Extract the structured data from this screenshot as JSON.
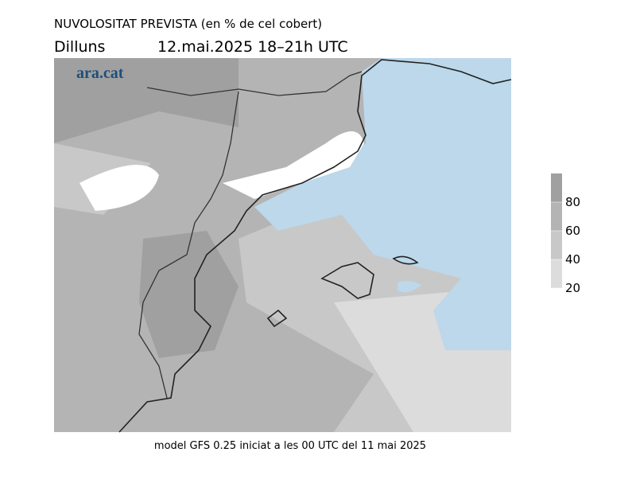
{
  "header": {
    "title": "NUVOLOSITAT PREVISTA (en % de cel cobert)",
    "day": "Dilluns",
    "date": "12.mai.2025 18–21h UTC"
  },
  "logo": "ara.cat",
  "legend": {
    "ticks": [
      80,
      60,
      40,
      20
    ]
  },
  "footer": "model GFS 0.25 iniciat a les 00 UTC del 11 mai 2025"
}
